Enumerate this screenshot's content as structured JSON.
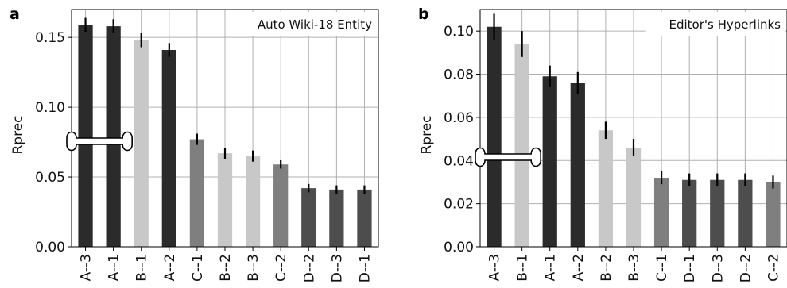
{
  "chart_data": [
    {
      "type": "bar",
      "panel_label": "a",
      "title": "Auto Wiki-18 Entity",
      "ylabel": "Rprec",
      "xlabel": "",
      "ylim": [
        0,
        0.17
      ],
      "yticks": [
        "0.00",
        "0.05",
        "0.10",
        "0.15"
      ],
      "grid": true,
      "axis_break_marker": true,
      "categories": [
        "A--3",
        "A--1",
        "B--1",
        "A--2",
        "C--1",
        "B--2",
        "B--3",
        "C--2",
        "D--2",
        "D--3",
        "D--1"
      ],
      "values": [
        0.159,
        0.158,
        0.148,
        0.141,
        0.077,
        0.067,
        0.065,
        0.059,
        0.042,
        0.041,
        0.041
      ],
      "errors": [
        0.005,
        0.005,
        0.005,
        0.005,
        0.004,
        0.004,
        0.004,
        0.003,
        0.003,
        0.003,
        0.003
      ],
      "bar_colors": [
        "#2b2b2b",
        "#2b2b2b",
        "#c8c8c8",
        "#2b2b2b",
        "#7f7f7f",
        "#c8c8c8",
        "#c8c8c8",
        "#7f7f7f",
        "#4d4d4d",
        "#4d4d4d",
        "#4d4d4d"
      ]
    },
    {
      "type": "bar",
      "panel_label": "b",
      "title": "Editor's Hyperlinks",
      "ylabel": "Rprec",
      "xlabel": "",
      "ylim": [
        0,
        0.11
      ],
      "yticks": [
        "0.00",
        "0.02",
        "0.04",
        "0.06",
        "0.08",
        "0.10"
      ],
      "grid": true,
      "axis_break_marker": true,
      "categories": [
        "A--3",
        "B--1",
        "A--1",
        "A--2",
        "B--2",
        "B--3",
        "C--1",
        "D--1",
        "D--3",
        "D--2",
        "C--2"
      ],
      "values": [
        0.102,
        0.094,
        0.079,
        0.076,
        0.054,
        0.046,
        0.032,
        0.031,
        0.031,
        0.031,
        0.03
      ],
      "errors": [
        0.006,
        0.006,
        0.005,
        0.005,
        0.004,
        0.004,
        0.003,
        0.003,
        0.003,
        0.003,
        0.003
      ],
      "bar_colors": [
        "#2b2b2b",
        "#c8c8c8",
        "#2b2b2b",
        "#2b2b2b",
        "#c8c8c8",
        "#c8c8c8",
        "#7f7f7f",
        "#4d4d4d",
        "#4d4d4d",
        "#4d4d4d",
        "#7f7f7f"
      ]
    }
  ]
}
